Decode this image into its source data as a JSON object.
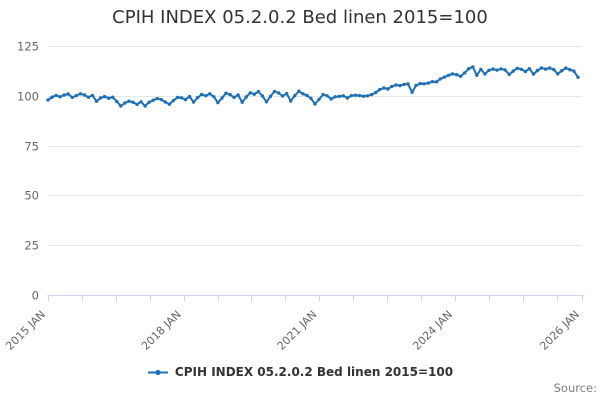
{
  "title": "CPIH INDEX 05.2.0.2 Bed linen 2015=100",
  "legend": {
    "label": "CPIH INDEX 05.2.0.2 Bed linen 2015=100"
  },
  "source_label": "Source:",
  "colors": {
    "series": "#1d70b8",
    "grid": "#e6e6e6",
    "axis": "#ccd6eb",
    "axis_label_text": "#666666",
    "title_text": "#333333",
    "legend_text": "#333333",
    "source_text": "#808080"
  },
  "chart_data": {
    "type": "line",
    "title": "CPIH INDEX 05.2.0.2 Bed linen 2015=100",
    "xlabel": "",
    "ylabel": "",
    "ylim": [
      0,
      125
    ],
    "y_ticks": [
      0,
      25,
      50,
      75,
      100,
      125
    ],
    "x_tick_count": 17,
    "x_tick_labels": [
      "2015 JAN",
      "2018 JAN",
      "2021 JAN",
      "2024 JAN",
      "2026 JAN"
    ],
    "labeled_tick_indices": [
      0,
      4,
      8,
      12,
      16
    ],
    "grid": "horizontal-only",
    "legend_position": "bottom-center",
    "frequency": "monthly",
    "x_start": "2015 JAN",
    "x_end": "2025 DEC",
    "series": [
      {
        "name": "CPIH INDEX 05.2.0.2 Bed linen 2015=100",
        "values": [
          97.9,
          99.3,
          100.2,
          99.5,
          100.4,
          100.9,
          99.2,
          100.1,
          101.0,
          100.4,
          99.3,
          100.2,
          97.3,
          98.9,
          99.6,
          98.8,
          99.3,
          97.2,
          94.9,
          96.4,
          97.3,
          96.8,
          95.7,
          97.0,
          94.9,
          96.8,
          97.8,
          98.6,
          98.1,
          96.9,
          95.8,
          97.6,
          99.2,
          99.0,
          98.1,
          99.6,
          96.9,
          99.1,
          100.7,
          100.0,
          101.0,
          99.5,
          96.6,
          98.9,
          101.3,
          100.6,
          99.2,
          100.4,
          96.8,
          99.4,
          101.5,
          100.8,
          102.1,
          99.9,
          97.0,
          99.7,
          102.2,
          101.4,
          99.9,
          101.1,
          97.4,
          100.1,
          102.3,
          101.0,
          100.2,
          98.7,
          95.9,
          98.2,
          100.6,
          100.0,
          98.4,
          99.5,
          99.7,
          100.0,
          98.9,
          100.1,
          100.3,
          100.1,
          99.8,
          100.0,
          100.6,
          101.6,
          103.1,
          103.9,
          103.4,
          104.7,
          105.4,
          105.1,
          105.7,
          105.9,
          101.8,
          105.2,
          106.1,
          106.0,
          106.4,
          107.1,
          107.0,
          108.5,
          109.4,
          110.3,
          111.0,
          110.6,
          109.8,
          111.5,
          113.6,
          114.5,
          110.3,
          113.3,
          111.0,
          112.8,
          113.4,
          112.9,
          113.5,
          113.0,
          110.7,
          112.4,
          113.8,
          113.3,
          112.2,
          113.6,
          110.9,
          112.7,
          114.0,
          113.4,
          113.9,
          113.2,
          111.0,
          112.6,
          113.9,
          113.1,
          112.4,
          109.3
        ]
      }
    ]
  }
}
